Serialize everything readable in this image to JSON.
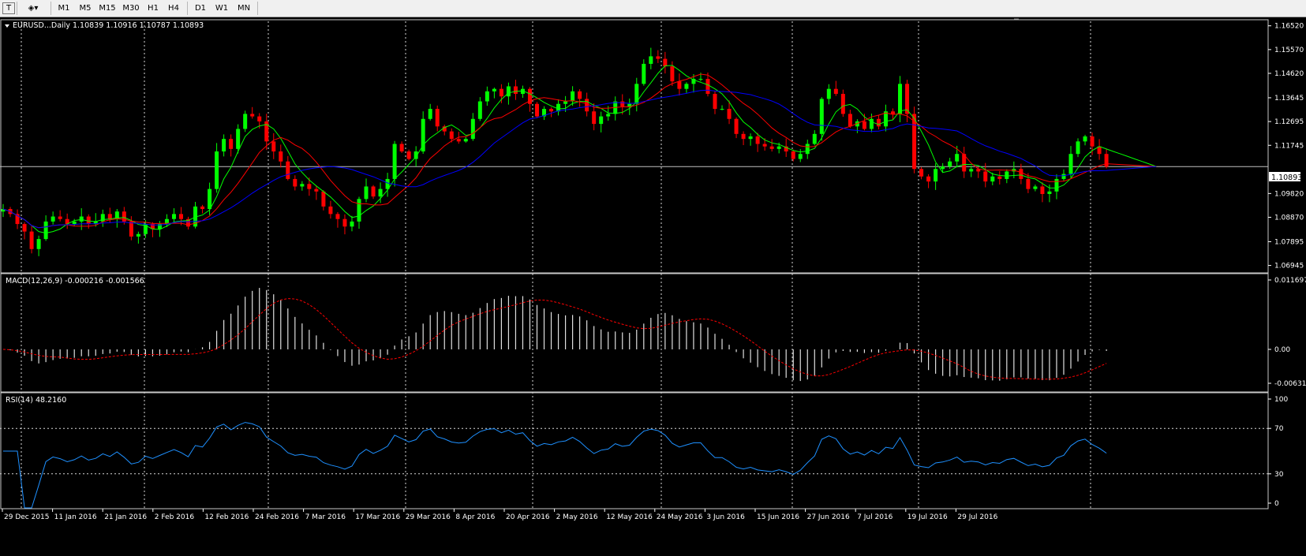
{
  "toolbar": {
    "timeframes": [
      "M1",
      "M5",
      "M15",
      "M30",
      "H1",
      "H4",
      "D1",
      "W1",
      "MN"
    ]
  },
  "price_panel": {
    "label": "EURUSD...Daily  1.10839 1.10916 1.10787 1.10893",
    "current_price": "1.10893",
    "y_ticks": [
      "1.16520",
      "1.15570",
      "1.14620",
      "1.13645",
      "1.12695",
      "1.11745",
      "1.09820",
      "1.08870",
      "1.07895",
      "1.06945"
    ]
  },
  "macd_panel": {
    "label": "MACD(12,26,9) -0.000216 -0.001566",
    "y_ticks": [
      "0.011697",
      "0.00",
      "-0.006315"
    ]
  },
  "rsi_panel": {
    "label": "RSI(14) 48.2160",
    "y_ticks": [
      "100",
      "70",
      "30",
      "0"
    ]
  },
  "date_labels": [
    "29 Dec 2015",
    "11 Jan 2016",
    "21 Jan 2016",
    "2 Feb 2016",
    "12 Feb 2016",
    "24 Feb 2016",
    "7 Mar 2016",
    "17 Mar 2016",
    "29 Mar 2016",
    "8 Apr 2016",
    "20 Apr 2016",
    "2 May 2016",
    "12 May 2016",
    "24 May 2016",
    "3 Jun 2016",
    "15 Jun 2016",
    "27 Jun 2016",
    "7 Jul 2016",
    "19 Jul 2016",
    "29 Jul 2016"
  ],
  "colors": {
    "bull": "#00ff00",
    "bear": "#ff0000",
    "ma_fast": "#00ff00",
    "ma_mid": "#ff0000",
    "ma_slow": "#0000ff",
    "rsi": "#1e90ff",
    "macd_signal": "#ff0000",
    "grid": "#ffffff"
  },
  "chart_data": {
    "type": "candlestick",
    "symbol": "EURUSD",
    "timeframe": "Daily",
    "ylim": [
      1.0668,
      1.167
    ],
    "close": [
      1.092,
      1.09,
      1.086,
      1.083,
      1.076,
      1.08,
      1.087,
      1.089,
      1.088,
      1.086,
      1.087,
      1.089,
      1.086,
      1.087,
      1.09,
      1.088,
      1.091,
      1.087,
      1.081,
      1.082,
      1.086,
      1.084,
      1.086,
      1.088,
      1.09,
      1.088,
      1.085,
      1.093,
      1.092,
      1.1,
      1.115,
      1.12,
      1.116,
      1.124,
      1.13,
      1.129,
      1.127,
      1.119,
      1.115,
      1.111,
      1.104,
      1.101,
      1.102,
      1.1,
      1.099,
      1.093,
      1.09,
      1.088,
      1.085,
      1.087,
      1.096,
      1.101,
      1.097,
      1.1,
      1.104,
      1.118,
      1.115,
      1.112,
      1.115,
      1.128,
      1.132,
      1.125,
      1.123,
      1.12,
      1.119,
      1.12,
      1.128,
      1.135,
      1.139,
      1.14,
      1.137,
      1.141,
      1.138,
      1.14,
      1.134,
      1.129,
      1.132,
      1.131,
      1.134,
      1.135,
      1.139,
      1.136,
      1.131,
      1.126,
      1.129,
      1.13,
      1.135,
      1.133,
      1.134,
      1.142,
      1.15,
      1.153,
      1.152,
      1.149,
      1.143,
      1.14,
      1.142,
      1.144,
      1.144,
      1.138,
      1.132,
      1.132,
      1.128,
      1.122,
      1.12,
      1.121,
      1.118,
      1.117,
      1.116,
      1.117,
      1.115,
      1.112,
      1.114,
      1.118,
      1.122,
      1.136,
      1.14,
      1.138,
      1.13,
      1.125,
      1.127,
      1.124,
      1.128,
      1.125,
      1.131,
      1.13,
      1.142,
      1.13,
      1.108,
      1.105,
      1.103,
      1.108,
      1.109,
      1.111,
      1.114,
      1.107,
      1.108,
      1.107,
      1.103,
      1.105,
      1.104,
      1.107,
      1.108,
      1.104,
      1.1,
      1.101,
      1.098,
      1.099,
      1.104,
      1.106,
      1.114,
      1.119,
      1.121,
      1.117,
      1.114,
      1.1089
    ]
  }
}
